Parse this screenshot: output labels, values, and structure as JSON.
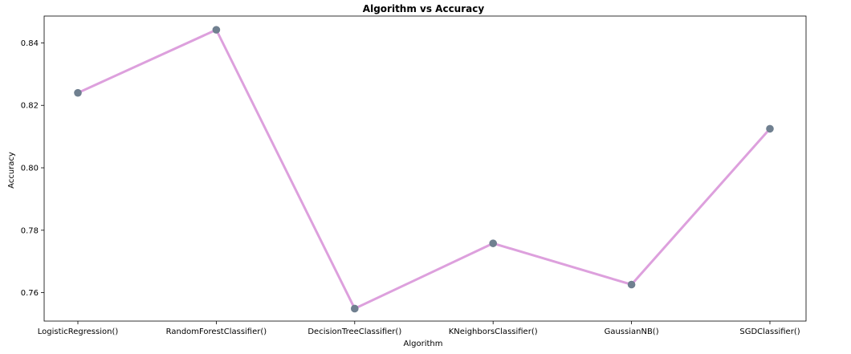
{
  "chart_data": {
    "type": "line",
    "title": "Algorithm vs Accuracy",
    "xlabel": "Algorithm",
    "ylabel": "Accuracy",
    "categories": [
      "LogisticRegression()",
      "RandomForestClassifier()",
      "DecisionTreeClassifier()",
      "KNeighborsClassifier()",
      "GaussianNB()",
      "SGDClassifier()"
    ],
    "series": [
      {
        "values": [
          0.824,
          0.8442,
          0.7549,
          0.7758,
          0.7626,
          0.8125
        ]
      }
    ],
    "ylim": [
      0.7509,
      0.8486
    ],
    "yticks": [
      0.76,
      0.78,
      0.8,
      0.82,
      0.84
    ],
    "ytick_labels": [
      "0.76",
      "0.78",
      "0.80",
      "0.82",
      "0.84"
    ],
    "grid": false,
    "legend": "none",
    "colors": {
      "line": "#dda0dd",
      "marker": "#708090",
      "axes": "#000000"
    }
  }
}
